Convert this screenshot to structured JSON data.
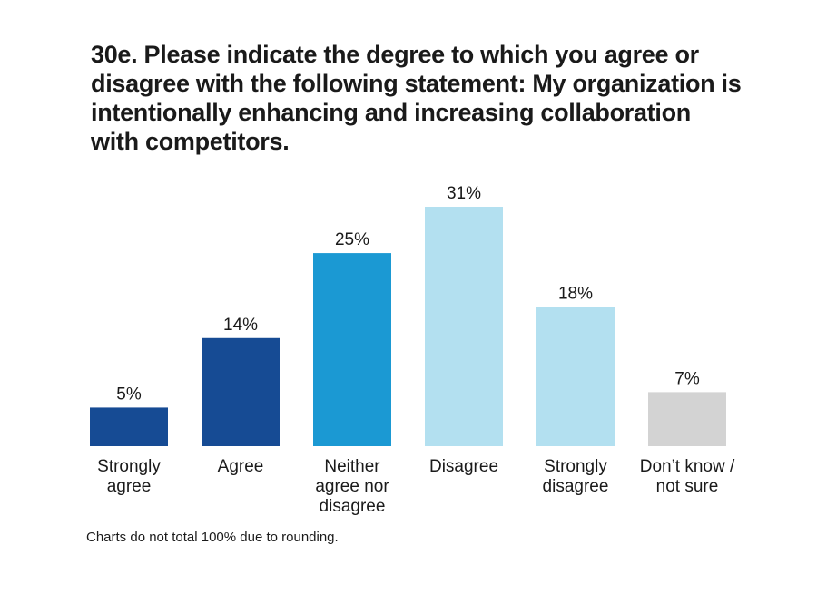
{
  "title": "30e. Please indicate the degree to which you agree or disagree with the following statement: My organization is intentionally enhancing and increasing collaboration with competitors.",
  "footnote": "Charts do not total 100% due to rounding.",
  "chart_data": {
    "type": "bar",
    "title": "30e. Please indicate the degree to which you agree or disagree with the following statement: My organization is intentionally enhancing and increasing collaboration with competitors.",
    "xlabel": "",
    "ylabel": "",
    "categories": [
      [
        "Strongly",
        "agree"
      ],
      [
        "Agree"
      ],
      [
        "Neither",
        "agree nor",
        "disagree"
      ],
      [
        "Disagree"
      ],
      [
        "Strongly",
        "disagree"
      ],
      [
        "Don’t know /",
        "not sure"
      ]
    ],
    "values": [
      5,
      14,
      25,
      31,
      18,
      7
    ],
    "value_labels": [
      "5%",
      "14%",
      "25%",
      "31%",
      "18%",
      "7%"
    ],
    "unit": "%",
    "colors": [
      "#164b94",
      "#164b94",
      "#1b99d3",
      "#b3e0f0",
      "#b3e0f0",
      "#d3d3d3"
    ],
    "ylim": [
      0,
      31
    ],
    "grid": false,
    "axes_visible": false
  }
}
